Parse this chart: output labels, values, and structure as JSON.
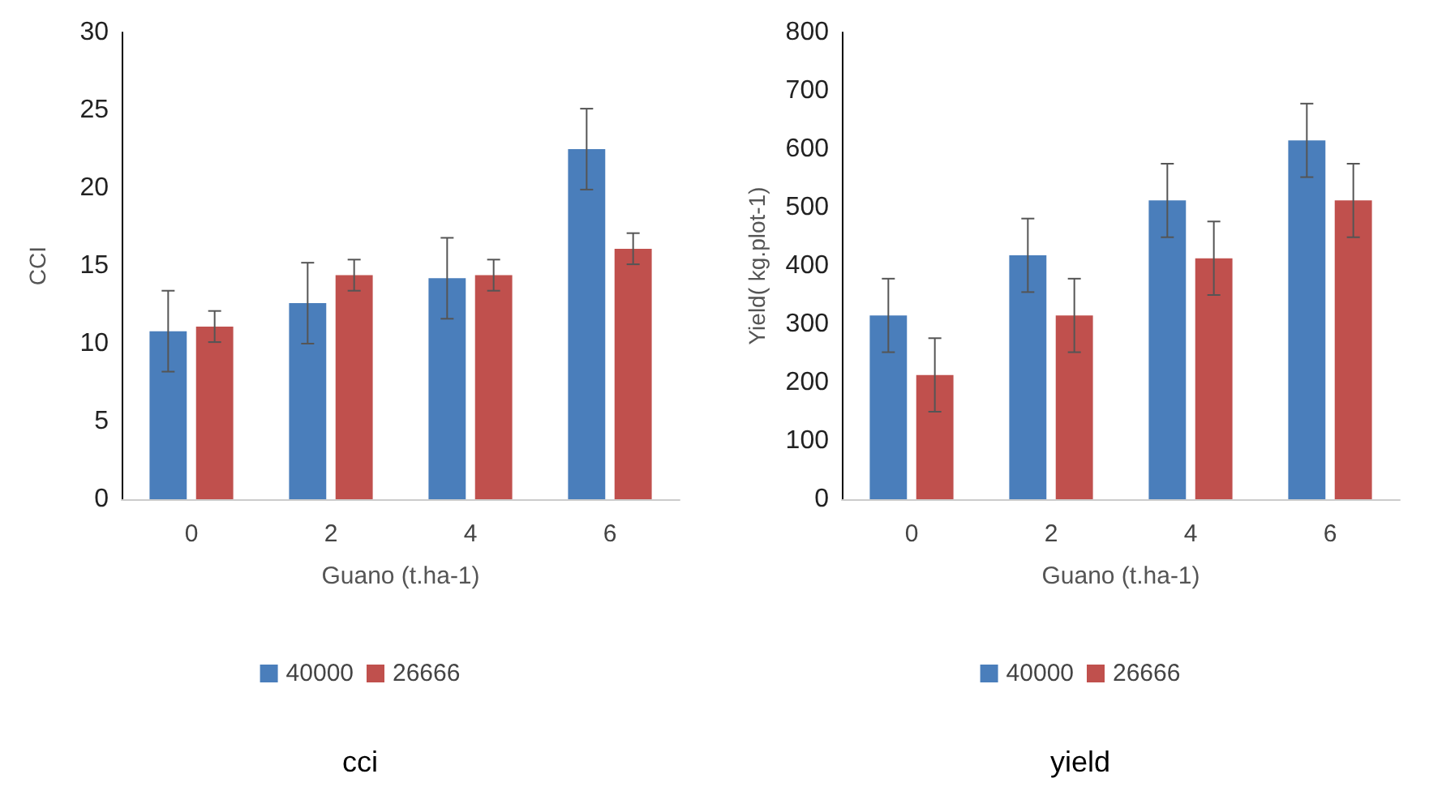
{
  "chart_data": [
    {
      "type": "bar",
      "title": "cci",
      "xlabel": "Guano (t.ha-1)",
      "ylabel": "CCI",
      "categories": [
        "0",
        "2",
        "4",
        "6"
      ],
      "series": [
        {
          "name": "40000",
          "color": "#4a7ebb",
          "values": [
            10.8,
            12.6,
            14.2,
            22.5
          ],
          "errors": [
            2.6,
            2.6,
            2.6,
            2.6
          ]
        },
        {
          "name": "26666",
          "color": "#c0504d",
          "values": [
            11.1,
            14.4,
            14.4,
            16.1
          ],
          "errors": [
            1,
            1,
            1,
            1
          ]
        }
      ],
      "ylim": [
        0,
        30
      ],
      "yticks": [
        0,
        5,
        10,
        15,
        20,
        25,
        30
      ],
      "grid": false,
      "legend": "bottom"
    },
    {
      "type": "bar",
      "title": "yield",
      "xlabel": "Guano (t.ha-1)",
      "ylabel": "Yield( kg.plot-1)",
      "categories": [
        "0",
        "2",
        "4",
        "6"
      ],
      "series": [
        {
          "name": "40000",
          "color": "#4a7ebb",
          "values": [
            315,
            418,
            512,
            615
          ],
          "errors": [
            63,
            63,
            63,
            63
          ]
        },
        {
          "name": "26666",
          "color": "#c0504d",
          "values": [
            213,
            315,
            413,
            512
          ],
          "errors": [
            63,
            63,
            63,
            63
          ]
        }
      ],
      "ylim": [
        0,
        800
      ],
      "yticks": [
        0,
        100,
        200,
        300,
        400,
        500,
        600,
        700,
        800
      ],
      "grid": false,
      "legend": "bottom"
    }
  ]
}
